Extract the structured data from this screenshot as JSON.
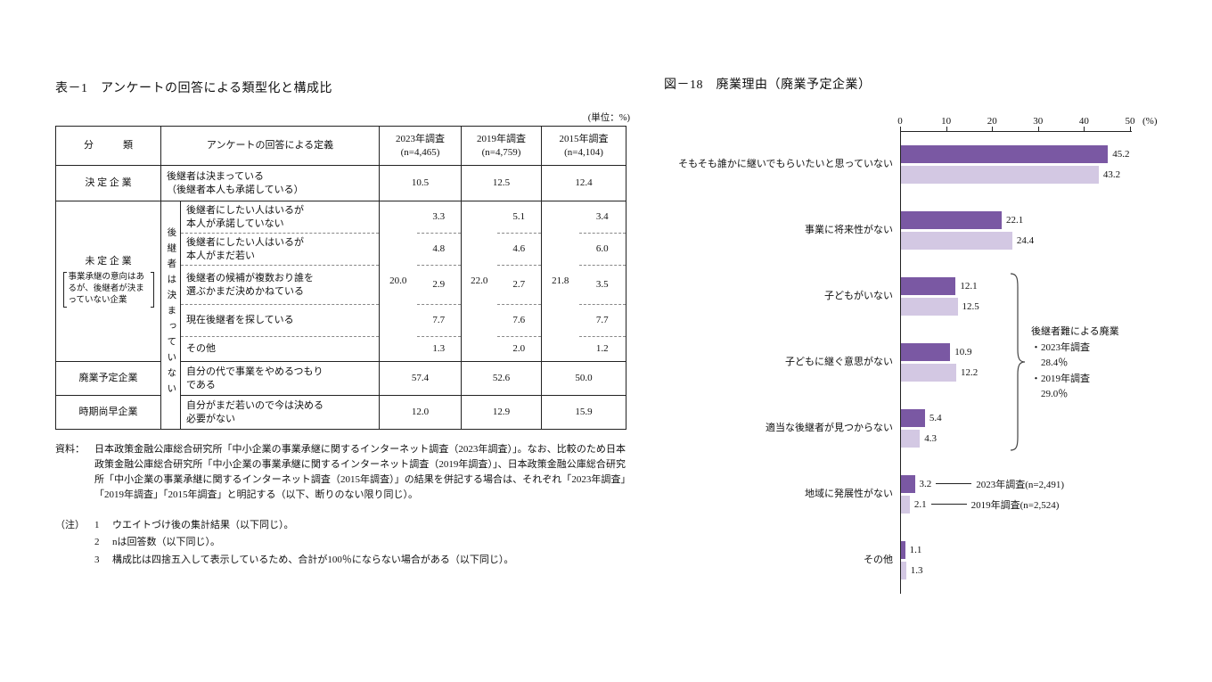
{
  "table": {
    "title": "表－1　アンケートの回答による類型化と構成比",
    "unit": "(単位：%)",
    "headers": {
      "classification": "分　　　類",
      "definition": "アンケートの回答による定義",
      "y2023": "2023年調査",
      "n2023": "(n=4,465)",
      "y2019": "2019年調査",
      "n2019": "(n=4,759)",
      "y2015": "2015年調査",
      "n2015": "(n=4,104)"
    },
    "rows": {
      "kettei": {
        "label": "決 定 企 業",
        "def": "後継者は決まっている\n（後継者本人も承諾している）",
        "v2023": "10.5",
        "v2019": "12.5",
        "v2015": "12.4"
      },
      "mitei": {
        "label": "未 定 企 業",
        "note": "事業承継の意向はあるが、後継者が決まっていない企業",
        "strip": "後継者は決まっていない",
        "totals": {
          "v2023": "20.0",
          "v2019": "22.0",
          "v2015": "21.8"
        },
        "subrows": [
          {
            "def": "後継者にしたい人はいるが\n本人が承諾していない",
            "v2023": "3.3",
            "v2019": "5.1",
            "v2015": "3.4"
          },
          {
            "def": "後継者にしたい人はいるが\n本人がまだ若い",
            "v2023": "4.8",
            "v2019": "4.6",
            "v2015": "6.0"
          },
          {
            "def": "後継者の候補が複数おり誰を\n選ぶかまだ決めかねている",
            "v2023": "2.9",
            "v2019": "2.7",
            "v2015": "3.5"
          },
          {
            "def": "現在後継者を探している",
            "v2023": "7.7",
            "v2019": "7.6",
            "v2015": "7.7"
          },
          {
            "def": "その他",
            "v2023": "1.3",
            "v2019": "2.0",
            "v2015": "1.2"
          }
        ]
      },
      "haigyo": {
        "label": "廃業予定企業",
        "def": "自分の代で事業をやめるつもり\nである",
        "v2023": "57.4",
        "v2019": "52.6",
        "v2015": "50.0"
      },
      "jiki": {
        "label": "時期尚早企業",
        "def": "自分がまだ若いので今は決める\n必要がない",
        "v2023": "12.0",
        "v2019": "12.9",
        "v2015": "15.9"
      }
    },
    "source": {
      "label": "資料：",
      "text": "日本政策金融公庫総合研究所「中小企業の事業承継に関するインターネット調査（2023年調査）」。なお、比較のため日本政策金融公庫総合研究所「中小企業の事業承継に関するインターネット調査（2019年調査）」、日本政策金融公庫総合研究所「中小企業の事業承継に関するインターネット調査（2015年調査）」の結果を併記する場合は、それぞれ「2023年調査」「2019年調査」「2015年調査」と明記する（以下、断りのない限り同じ）。"
    },
    "notes": {
      "label": "（注）",
      "items": [
        {
          "num": "1",
          "text": "ウエイトづけ後の集計結果（以下同じ）。"
        },
        {
          "num": "2",
          "text": "nは回答数（以下同じ）。"
        },
        {
          "num": "3",
          "text": "構成比は四捨五入して表示しているため、合計が100％にならない場合がある（以下同じ）。"
        }
      ]
    }
  },
  "chart_data": {
    "type": "bar",
    "orientation": "horizontal",
    "title": "図－18　廃業理由（廃業予定企業）",
    "xlabel_unit": "(%)",
    "x_axis": {
      "ticks": [
        0,
        10,
        20,
        30,
        40,
        50
      ],
      "max": 50
    },
    "categories": [
      "そもそも誰かに継いでもらいたいと思っていない",
      "事業に将来性がない",
      "子どもがいない",
      "子どもに継ぐ意思がない",
      "適当な後継者が見つからない",
      "地域に発展性がない",
      "その他"
    ],
    "series": [
      {
        "name": "2023年調査(n=2,491)",
        "color": "#7a58a3",
        "values": [
          45.2,
          22.1,
          12.1,
          10.9,
          5.4,
          3.2,
          1.1
        ]
      },
      {
        "name": "2019年調査(n=2,524)",
        "color": "#d3c8e3",
        "values": [
          43.2,
          24.4,
          12.5,
          12.2,
          4.3,
          2.1,
          1.3
        ]
      }
    ],
    "legend_attach_category": 5,
    "annotation": {
      "lines": [
        "後継者難による廃業",
        "・2023年調査",
        "　28.4％",
        "・2019年調査",
        "　29.0％"
      ],
      "covers_categories": [
        2,
        3,
        4
      ]
    }
  }
}
